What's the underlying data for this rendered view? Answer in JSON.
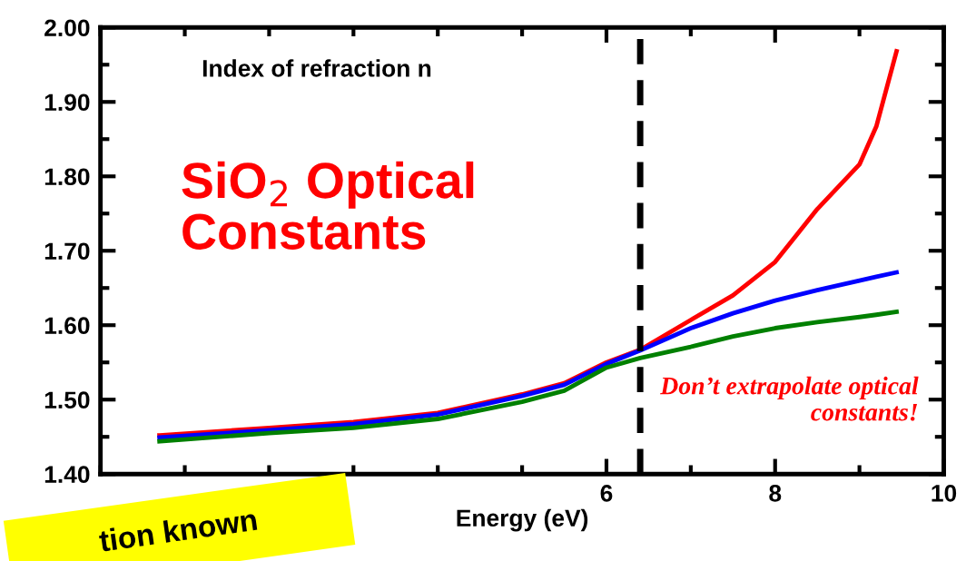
{
  "chart_data": {
    "type": "line",
    "xlabel": "Energy (eV)",
    "xlim": [
      0,
      10
    ],
    "xticks": [
      6,
      8,
      10
    ],
    "ylim": [
      1.4,
      2.0
    ],
    "yticks": [
      {
        "value": 1.4,
        "label": "1.40"
      },
      {
        "value": 1.5,
        "label": "1.50"
      },
      {
        "value": 1.6,
        "label": "1.60"
      },
      {
        "value": 1.7,
        "label": "1.70"
      },
      {
        "value": 1.8,
        "label": "1.80"
      },
      {
        "value": 1.9,
        "label": "1.90"
      },
      {
        "value": 2.0,
        "label": "2.00"
      }
    ],
    "x": [
      0.7,
      2,
      3,
      4,
      5,
      5.5,
      6,
      6.4,
      7,
      7.5,
      8,
      8.5,
      9,
      9.2,
      9.44
    ],
    "series": [
      {
        "color": "#ff0000",
        "values": [
          1.452,
          1.462,
          1.47,
          1.482,
          1.507,
          1.522,
          1.55,
          1.567,
          1.607,
          1.64,
          1.685,
          1.756,
          1.816,
          1.867,
          1.968
        ]
      },
      {
        "color": "#0000ff",
        "values": [
          1.449,
          1.459,
          1.467,
          1.48,
          1.505,
          1.52,
          1.548,
          1.566,
          1.596,
          1.616,
          1.633,
          1.647,
          1.66,
          1.665,
          1.671
        ]
      },
      {
        "color": "#008000",
        "values": [
          1.444,
          1.455,
          1.462,
          1.474,
          1.497,
          1.512,
          1.543,
          1.556,
          1.571,
          1.585,
          1.596,
          1.604,
          1.611,
          1.614,
          1.618
        ]
      }
    ],
    "ref_lines": [
      {
        "axis": "x",
        "value": 6.4,
        "color": "#000000",
        "line_style": "dashed"
      }
    ],
    "annotations": [
      "Index of refraction n",
      "SiO$_{2}$ Optical Constants",
      "Don’t extrapolate optical constants!",
      "tion known"
    ],
    "grid": false,
    "legend": false,
    "marker": "none",
    "line_style": "solid"
  }
}
